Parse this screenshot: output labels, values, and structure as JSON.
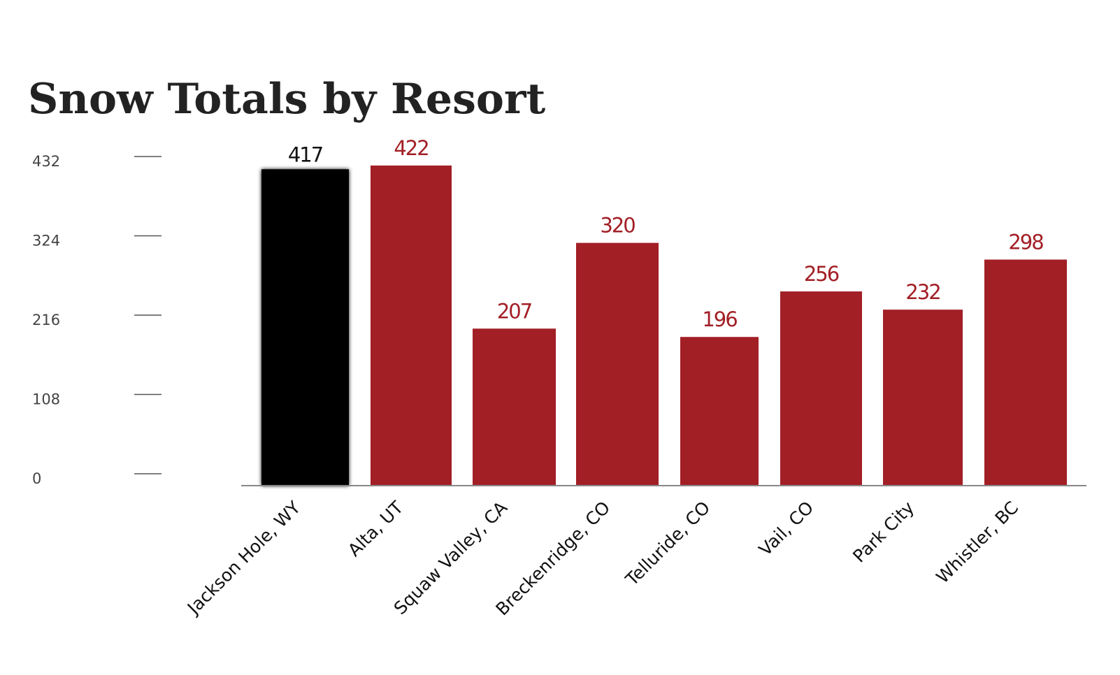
{
  "chart_data": {
    "type": "bar",
    "title": "Snow Totals by Resort",
    "xlabel": "",
    "ylabel": "",
    "ylim": [
      0,
      432
    ],
    "yticks": [
      0,
      108,
      216,
      324,
      432
    ],
    "grid": false,
    "legend": "none",
    "categories": [
      "Jackson Hole, WY",
      "Alta, UT",
      "Squaw Valley, CA",
      "Breckenridge, CO",
      "Telluride, CO",
      "Vail, CO",
      "Park City",
      "Whistler, BC"
    ],
    "values": [
      417,
      422,
      207,
      320,
      196,
      256,
      232,
      298
    ],
    "highlight_index": 0,
    "colors": {
      "highlight": "#000000",
      "default": "#a21f26",
      "highlight_label": "#111111",
      "default_label": "#a21f26"
    }
  }
}
